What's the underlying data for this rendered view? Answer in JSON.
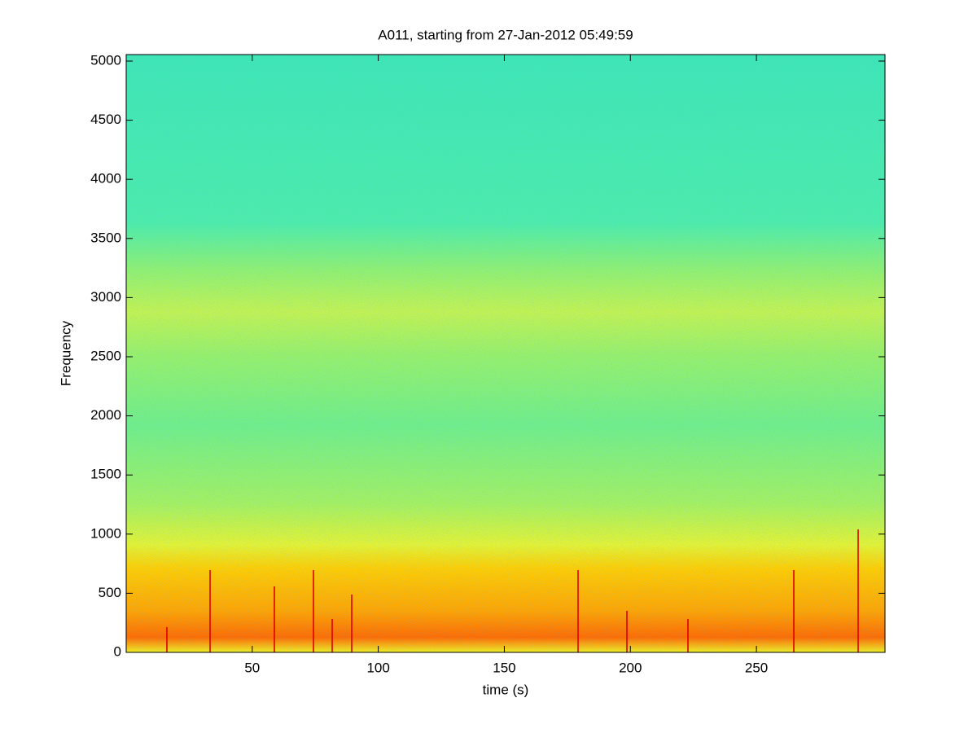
{
  "chart_data": {
    "type": "spectrogram",
    "title": "A011, starting from 27-Jan-2012 05:49:59",
    "xlabel": "time (s)",
    "ylabel": "Frequency",
    "xlim": [
      0,
      301
    ],
    "xticks": [
      50,
      100,
      150,
      200,
      250
    ],
    "ylim": [
      0,
      5055
    ],
    "yticks": [
      0,
      500,
      1000,
      1500,
      2000,
      2500,
      3000,
      3500,
      4000,
      4500,
      5000
    ]
  }
}
